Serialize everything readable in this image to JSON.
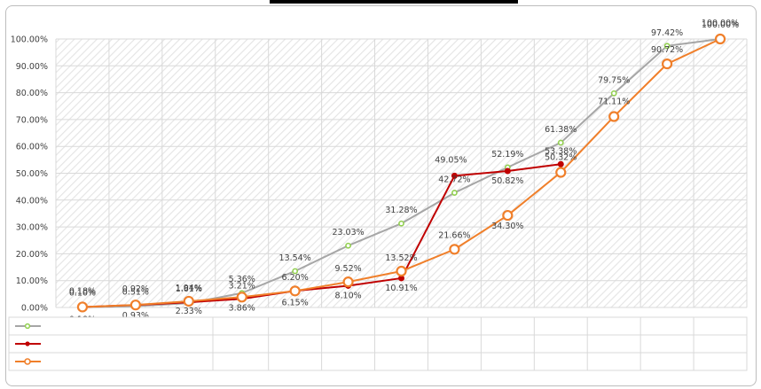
{
  "chart_data": {
    "type": "line",
    "title": "",
    "xlabel": "",
    "ylabel": "",
    "ylim": [
      0,
      100
    ],
    "y_ticks": [
      "0.00%",
      "10.00%",
      "20.00%",
      "30.00%",
      "40.00%",
      "50.00%",
      "60.00%",
      "70.00%",
      "80.00%",
      "90.00%",
      "100.00%"
    ],
    "grid": true,
    "legend": "bottom data table",
    "x_count": 13,
    "series": [
      {
        "color": "#a6a6a6",
        "marker_color": "#92d050",
        "marker": "small-circle",
        "values": [
          0.1,
          0.51,
          1.61,
          5.36,
          13.54,
          23.03,
          31.28,
          42.72,
          52.19,
          61.38,
          79.75,
          97.42,
          100.0
        ],
        "labels": [
          "0.10%",
          "0.51%",
          "1.61%",
          "5.36%",
          "13.54%",
          "23.03%",
          "31.28%",
          "42.72%",
          "52.19%",
          "61.38%",
          "79.75%",
          "97.42%",
          "100.00%"
        ]
      },
      {
        "color": "#c00000",
        "marker_color": "#c00000",
        "marker": "dot",
        "values": [
          0.18,
          0.92,
          1.94,
          3.21,
          6.2,
          8.1,
          10.91,
          49.05,
          50.82,
          53.38
        ],
        "labels": [
          "0.18%",
          "0.92%",
          "1.94%",
          "3.21%",
          "6.20%",
          "8.10%",
          "10.91%",
          "49.05%",
          "50.82%",
          "53.38%"
        ]
      },
      {
        "color": "#f07f2a",
        "marker_color": "#f07f2a",
        "marker": "large-ring",
        "values": [
          0.18,
          0.93,
          2.33,
          3.86,
          6.15,
          9.52,
          13.52,
          21.66,
          34.3,
          50.32,
          71.11,
          90.72,
          100.0
        ],
        "labels": [
          "0.18%",
          "0.93%",
          "2.33%",
          "3.86%",
          "6.15%",
          "9.52%",
          "13.52%",
          "21.66%",
          "34.30%",
          "50.32%",
          "71.11%",
          "90.72%",
          "100.00%"
        ]
      }
    ]
  }
}
